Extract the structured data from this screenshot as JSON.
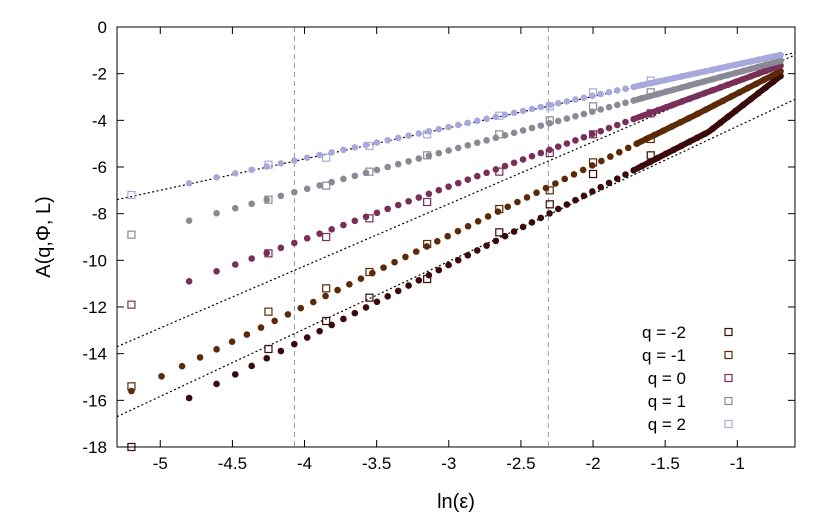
{
  "chart_data": {
    "type": "scatter",
    "xlabel": "ln(ε)",
    "ylabel": "A(q,Φ, L)",
    "xlim": [
      -5.3,
      -0.6
    ],
    "ylim": [
      -18,
      0
    ],
    "xticks": [
      -5,
      -4.5,
      -4,
      -3.5,
      -3,
      -2.5,
      -2,
      -1.5,
      -1
    ],
    "yticks": [
      0,
      -2,
      -4,
      -6,
      -8,
      -10,
      -12,
      -14,
      -16,
      -18
    ],
    "xtick_labels": [
      "-5",
      "-4.5",
      "-4",
      "-3.5",
      "-3",
      "-2.5",
      "-2",
      "-1.5",
      "-1"
    ],
    "ytick_labels": [
      "0",
      "-2",
      "-4",
      "-6",
      "-8",
      "-10",
      "-12",
      "-14",
      "-16",
      "-18"
    ],
    "grid": false,
    "legend_position": "bottom-right",
    "vertical_reference_lines": [
      -4.07,
      -2.31
    ],
    "colors": {
      "q=-2": "#3a0a0a",
      "q=-1": "#5c2a08",
      "q=0": "#7a2e5a",
      "q=1": "#8a8a96",
      "q=2": "#a8a8dd",
      "fit": "#000000",
      "reference": "#999999"
    },
    "series": [
      {
        "name": "q = -2",
        "color": "#3a0a0a",
        "square_points": [
          [
            -5.2,
            -18.0
          ],
          [
            -4.25,
            -13.8
          ],
          [
            -3.85,
            -12.6
          ],
          [
            -3.55,
            -11.6
          ],
          [
            -3.15,
            -10.8
          ],
          [
            -2.65,
            -8.8
          ],
          [
            -2.3,
            -7.6
          ],
          [
            -2.0,
            -6.3
          ],
          [
            -1.6,
            -5.5
          ]
        ],
        "dot_range": [
          -4.8,
          -0.7
        ],
        "dot_y_endpoints": [
          -15.9,
          -2.1
        ],
        "dot_bend": {
          "x": -1.2,
          "y": -4.5
        }
      },
      {
        "name": "q = -1",
        "color": "#5c2a08",
        "square_points": [
          [
            -5.2,
            -15.4
          ],
          [
            -4.25,
            -12.2
          ],
          [
            -3.85,
            -11.2
          ],
          [
            -3.55,
            -10.5
          ],
          [
            -3.15,
            -9.3
          ],
          [
            -2.65,
            -7.8
          ],
          [
            -2.3,
            -7.0
          ],
          [
            -2.0,
            -5.8
          ],
          [
            -1.6,
            -4.8
          ]
        ],
        "dot_range": [
          -5.2,
          -0.7
        ],
        "dot_y_endpoints": [
          -15.6,
          -1.9
        ],
        "dot_bend": {
          "x": -1.3,
          "y": -3.8
        }
      },
      {
        "name": "q = 0",
        "color": "#7a2e5a",
        "square_points": [
          [
            -5.2,
            -11.9
          ],
          [
            -4.25,
            -9.7
          ],
          [
            -3.85,
            -9.0
          ],
          [
            -3.55,
            -8.2
          ],
          [
            -3.15,
            -7.5
          ],
          [
            -2.65,
            -6.2
          ],
          [
            -2.3,
            -5.4
          ],
          [
            -2.0,
            -4.6
          ],
          [
            -1.6,
            -3.7
          ]
        ],
        "dot_range": [
          -4.8,
          -0.7
        ],
        "dot_y_endpoints": [
          -10.9,
          -1.65
        ]
      },
      {
        "name": "q = 1",
        "color": "#8a8a96",
        "square_points": [
          [
            -5.2,
            -8.9
          ],
          [
            -4.25,
            -7.4
          ],
          [
            -3.85,
            -6.8
          ],
          [
            -3.55,
            -6.2
          ],
          [
            -3.15,
            -5.5
          ],
          [
            -2.65,
            -4.6
          ],
          [
            -2.3,
            -4.0
          ],
          [
            -2.0,
            -3.4
          ],
          [
            -1.6,
            -2.8
          ]
        ],
        "dot_range": [
          -4.8,
          -0.7
        ],
        "dot_y_endpoints": [
          -8.3,
          -1.45
        ]
      },
      {
        "name": "q = 2",
        "color": "#a8a8dd",
        "square_points": [
          [
            -5.2,
            -7.2
          ],
          [
            -4.25,
            -5.9
          ],
          [
            -3.85,
            -5.6
          ],
          [
            -3.55,
            -5.1
          ],
          [
            -3.15,
            -4.6
          ],
          [
            -2.65,
            -3.8
          ],
          [
            -2.3,
            -3.4
          ],
          [
            -2.0,
            -2.8
          ],
          [
            -1.6,
            -2.3
          ]
        ],
        "dot_range": [
          -4.8,
          -0.7
        ],
        "dot_y_endpoints": [
          -6.7,
          -1.2
        ]
      }
    ],
    "fit_lines": [
      {
        "x": [
          -5.3,
          -0.6
        ],
        "y": [
          -16.7,
          -3.1
        ]
      },
      {
        "x": [
          -5.3,
          -0.6
        ],
        "y": [
          -13.7,
          -1.2
        ]
      },
      {
        "x": [
          -5.3,
          -0.6
        ],
        "y": [
          -7.4,
          -1.1
        ]
      }
    ]
  }
}
